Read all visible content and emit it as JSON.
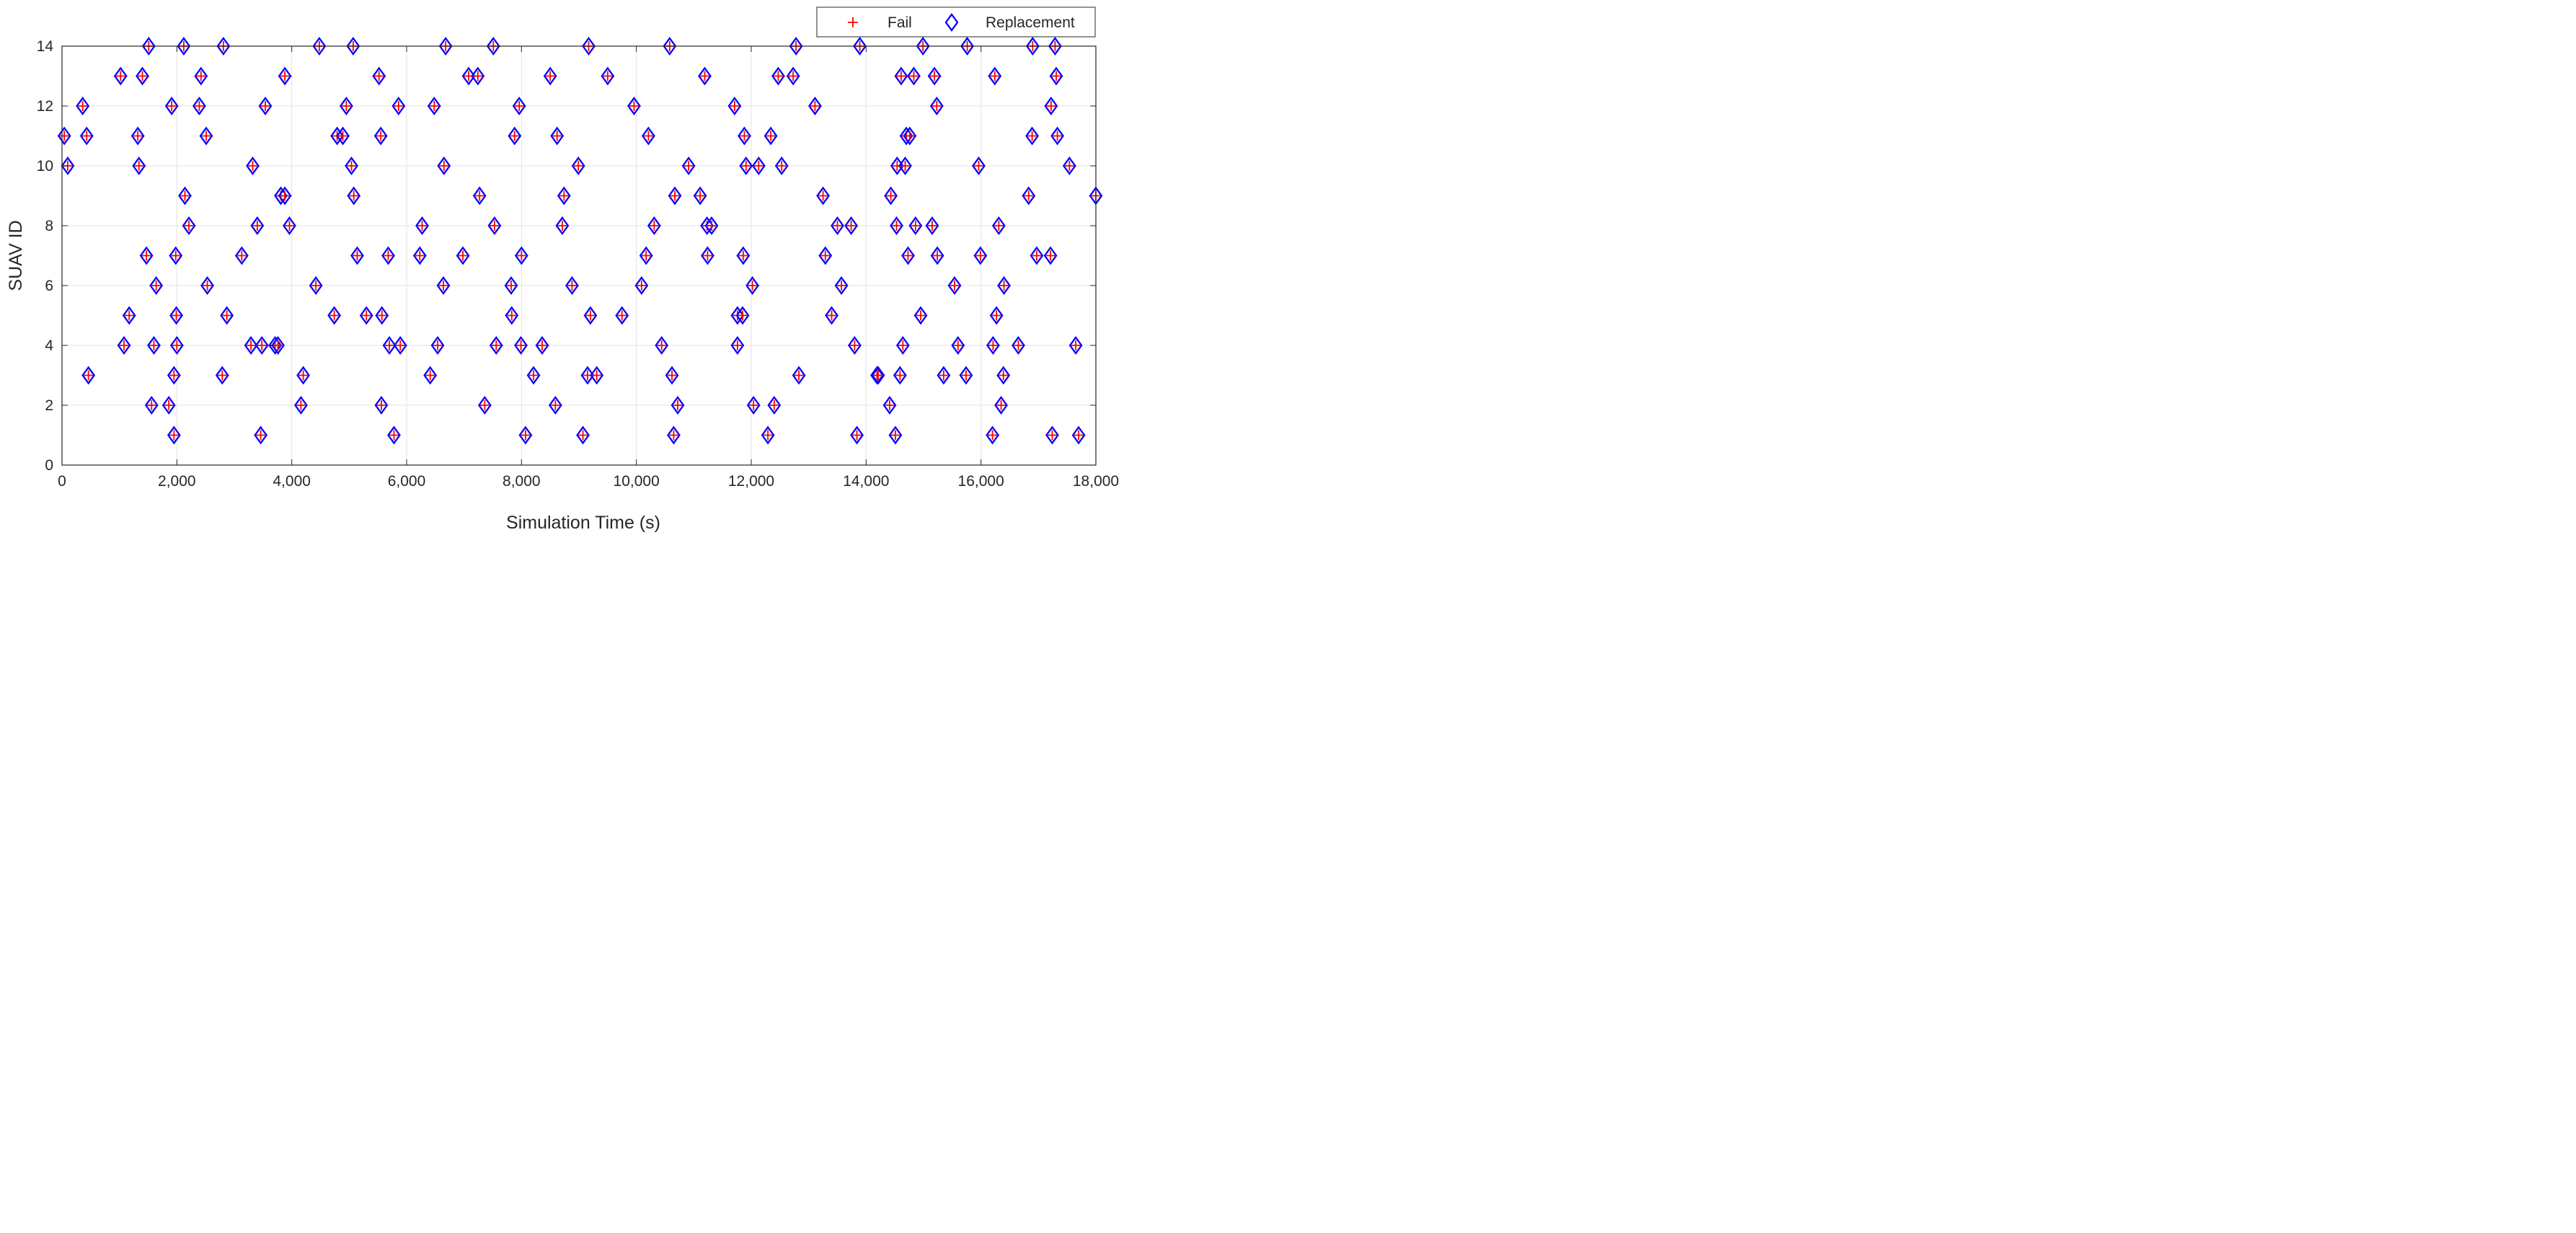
{
  "chart_data": {
    "type": "scatter",
    "xlabel": "Simulation Time (s)",
    "ylabel": "SUAV ID",
    "xlim": [
      0,
      18000
    ],
    "ylim": [
      0,
      14
    ],
    "x_ticks": [
      0,
      2000,
      4000,
      6000,
      8000,
      10000,
      12000,
      14000,
      16000,
      18000
    ],
    "x_tick_labels": [
      "0",
      "2,000",
      "4,000",
      "6,000",
      "8,000",
      "10,000",
      "12,000",
      "14,000",
      "16,000",
      "18,000"
    ],
    "y_ticks": [
      0,
      2,
      4,
      6,
      8,
      10,
      12,
      14
    ],
    "y_tick_labels": [
      "0",
      "2",
      "4",
      "6",
      "8",
      "10",
      "12",
      "14"
    ],
    "grid": true,
    "legend_position": "top-right, outside above plot",
    "series": [
      {
        "name": "Fail",
        "marker": "plus",
        "color": "#ff0000"
      },
      {
        "name": "Replacement",
        "marker": "diamond",
        "color": "#0000ff"
      }
    ],
    "points": [
      [
        40,
        11
      ],
      [
        100,
        10
      ],
      [
        360,
        12
      ],
      [
        430,
        11
      ],
      [
        460,
        3
      ],
      [
        1020,
        13
      ],
      [
        1080,
        4
      ],
      [
        1170,
        5
      ],
      [
        1320,
        11
      ],
      [
        1340,
        10
      ],
      [
        1400,
        13
      ],
      [
        1470,
        7
      ],
      [
        1510,
        14
      ],
      [
        1560,
        2
      ],
      [
        1600,
        4
      ],
      [
        1640,
        6
      ],
      [
        1860,
        2
      ],
      [
        1910,
        12
      ],
      [
        1950,
        1
      ],
      [
        1950,
        3
      ],
      [
        1980,
        7
      ],
      [
        1990,
        5
      ],
      [
        2000,
        4
      ],
      [
        2120,
        14
      ],
      [
        2140,
        9
      ],
      [
        2210,
        8
      ],
      [
        2390,
        12
      ],
      [
        2420,
        13
      ],
      [
        2510,
        11
      ],
      [
        2530,
        6
      ],
      [
        2790,
        3
      ],
      [
        2810,
        14
      ],
      [
        2870,
        5
      ],
      [
        3130,
        7
      ],
      [
        3290,
        4
      ],
      [
        3320,
        10
      ],
      [
        3400,
        8
      ],
      [
        3460,
        1
      ],
      [
        3480,
        4
      ],
      [
        3540,
        12
      ],
      [
        3710,
        4
      ],
      [
        3760,
        4
      ],
      [
        3810,
        9
      ],
      [
        3880,
        9
      ],
      [
        3880,
        13
      ],
      [
        3960,
        8
      ],
      [
        4160,
        2
      ],
      [
        4200,
        3
      ],
      [
        4420,
        6
      ],
      [
        4480,
        14
      ],
      [
        4740,
        5
      ],
      [
        4790,
        11
      ],
      [
        4890,
        11
      ],
      [
        4950,
        12
      ],
      [
        5040,
        10
      ],
      [
        5070,
        14
      ],
      [
        5080,
        9
      ],
      [
        5140,
        7
      ],
      [
        5300,
        5
      ],
      [
        5520,
        13
      ],
      [
        5550,
        11
      ],
      [
        5560,
        2
      ],
      [
        5570,
        5
      ],
      [
        5680,
        7
      ],
      [
        5700,
        4
      ],
      [
        5780,
        1
      ],
      [
        5860,
        12
      ],
      [
        5890,
        4
      ],
      [
        6230,
        7
      ],
      [
        6270,
        8
      ],
      [
        6410,
        3
      ],
      [
        6480,
        12
      ],
      [
        6540,
        4
      ],
      [
        6640,
        6
      ],
      [
        6650,
        10
      ],
      [
        6680,
        14
      ],
      [
        6980,
        7
      ],
      [
        7080,
        13
      ],
      [
        7240,
        13
      ],
      [
        7270,
        9
      ],
      [
        7360,
        2
      ],
      [
        7510,
        14
      ],
      [
        7530,
        8
      ],
      [
        7560,
        4
      ],
      [
        7820,
        6
      ],
      [
        7830,
        5
      ],
      [
        7880,
        11
      ],
      [
        7960,
        12
      ],
      [
        7990,
        4
      ],
      [
        8000,
        7
      ],
      [
        8070,
        1
      ],
      [
        8210,
        3
      ],
      [
        8360,
        4
      ],
      [
        8500,
        13
      ],
      [
        8590,
        2
      ],
      [
        8620,
        11
      ],
      [
        8710,
        8
      ],
      [
        8740,
        9
      ],
      [
        8880,
        6
      ],
      [
        8990,
        10
      ],
      [
        9070,
        1
      ],
      [
        9150,
        3
      ],
      [
        9170,
        14
      ],
      [
        9200,
        5
      ],
      [
        9310,
        3
      ],
      [
        9500,
        13
      ],
      [
        9750,
        5
      ],
      [
        9960,
        12
      ],
      [
        10090,
        6
      ],
      [
        10170,
        7
      ],
      [
        10210,
        11
      ],
      [
        10310,
        8
      ],
      [
        10440,
        4
      ],
      [
        10580,
        14
      ],
      [
        10620,
        3
      ],
      [
        10650,
        1
      ],
      [
        10670,
        9
      ],
      [
        10720,
        2
      ],
      [
        10910,
        10
      ],
      [
        11110,
        9
      ],
      [
        11190,
        13
      ],
      [
        11230,
        8
      ],
      [
        11240,
        7
      ],
      [
        11310,
        8
      ],
      [
        11710,
        12
      ],
      [
        11760,
        4
      ],
      [
        11760,
        5
      ],
      [
        11850,
        5
      ],
      [
        11860,
        7
      ],
      [
        11880,
        11
      ],
      [
        11910,
        10
      ],
      [
        12020,
        6
      ],
      [
        12040,
        2
      ],
      [
        12130,
        10
      ],
      [
        12290,
        1
      ],
      [
        12340,
        11
      ],
      [
        12400,
        2
      ],
      [
        12470,
        13
      ],
      [
        12530,
        10
      ],
      [
        12730,
        13
      ],
      [
        12780,
        14
      ],
      [
        12830,
        3
      ],
      [
        13110,
        12
      ],
      [
        13250,
        9
      ],
      [
        13290,
        7
      ],
      [
        13400,
        5
      ],
      [
        13500,
        8
      ],
      [
        13570,
        6
      ],
      [
        13740,
        8
      ],
      [
        13800,
        4
      ],
      [
        13840,
        1
      ],
      [
        13890,
        14
      ],
      [
        14190,
        3
      ],
      [
        14210,
        3
      ],
      [
        14410,
        2
      ],
      [
        14430,
        9
      ],
      [
        14510,
        1
      ],
      [
        14530,
        8
      ],
      [
        14540,
        10
      ],
      [
        14590,
        3
      ],
      [
        14610,
        13
      ],
      [
        14640,
        4
      ],
      [
        14680,
        10
      ],
      [
        14700,
        11
      ],
      [
        14730,
        7
      ],
      [
        14760,
        11
      ],
      [
        14830,
        13
      ],
      [
        14860,
        8
      ],
      [
        14950,
        5
      ],
      [
        14990,
        14
      ],
      [
        15150,
        8
      ],
      [
        15190,
        13
      ],
      [
        15230,
        12
      ],
      [
        15240,
        7
      ],
      [
        15350,
        3
      ],
      [
        15540,
        6
      ],
      [
        15600,
        4
      ],
      [
        15740,
        3
      ],
      [
        15760,
        14
      ],
      [
        15960,
        10
      ],
      [
        15990,
        7
      ],
      [
        16200,
        1
      ],
      [
        16210,
        4
      ],
      [
        16240,
        13
      ],
      [
        16270,
        5
      ],
      [
        16310,
        8
      ],
      [
        16350,
        2
      ],
      [
        16390,
        3
      ],
      [
        16400,
        6
      ],
      [
        16650,
        4
      ],
      [
        16830,
        9
      ],
      [
        16890,
        11
      ],
      [
        16900,
        14
      ],
      [
        16970,
        7
      ],
      [
        17210,
        7
      ],
      [
        17220,
        12
      ],
      [
        17240,
        1
      ],
      [
        17290,
        14
      ],
      [
        17310,
        13
      ],
      [
        17330,
        11
      ],
      [
        17540,
        10
      ],
      [
        17650,
        4
      ],
      [
        17700,
        1
      ],
      [
        18000,
        9
      ]
    ]
  }
}
